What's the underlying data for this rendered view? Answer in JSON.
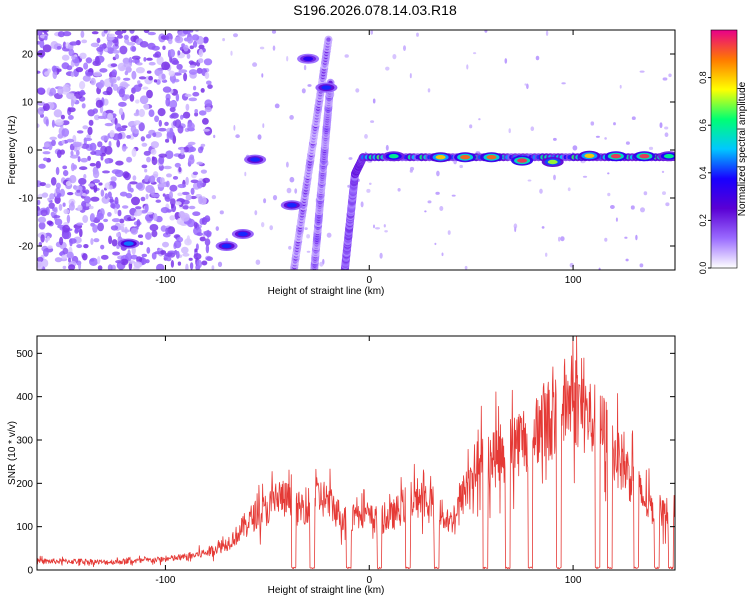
{
  "title": "S196.2026.078.14.03.R18",
  "colors": {
    "snr_line": "#e53a36",
    "colormap": [
      "#ffffff",
      "#9a6bff",
      "#5a00d4",
      "#1800ff",
      "#00c8ff",
      "#00ff73",
      "#ffff00",
      "#ff7a00",
      "#e8008a"
    ]
  },
  "chart_data": [
    {
      "type": "heatmap",
      "xlabel": "Height of straight line (km)",
      "ylabel": "Frequency (Hz)",
      "xlim": [
        -163,
        150
      ],
      "ylim": [
        -25,
        25
      ],
      "xticks": [
        {
          "value": -100,
          "label": "-100"
        },
        {
          "value": 0,
          "label": "0"
        },
        {
          "value": 100,
          "label": "100"
        }
      ],
      "yticks": [
        {
          "value": 20,
          "label": "20"
        },
        {
          "value": 10,
          "label": "10"
        },
        {
          "value": 0,
          "label": "0"
        },
        {
          "value": -10,
          "label": "-10"
        },
        {
          "value": -20,
          "label": "-20"
        }
      ],
      "colorbar": {
        "label": "Normalized spectral amplitude",
        "range": [
          0,
          1
        ],
        "ticks": [
          {
            "value": 0.0,
            "label": "0.0"
          },
          {
            "value": 0.2,
            "label": "0.2"
          },
          {
            "value": 0.4,
            "label": "0.4"
          },
          {
            "value": 0.6,
            "label": "0.6"
          },
          {
            "value": 0.8,
            "label": "0.8"
          }
        ]
      },
      "ridges": [
        {
          "from": [
            -12,
            -25
          ],
          "to": [
            -7,
            -5
          ],
          "amplitude": 0.35
        },
        {
          "from": [
            -7,
            -5
          ],
          "to": [
            -3,
            -1.5
          ],
          "amplitude": 0.5
        },
        {
          "from": [
            -3,
            -1.5
          ],
          "to": [
            150,
            -1.5
          ],
          "amplitude": 0.55
        },
        {
          "from": [
            -37,
            -25
          ],
          "to": [
            -20,
            23
          ],
          "amplitude": 0.2
        },
        {
          "from": [
            -27,
            -25
          ],
          "to": [
            -19,
            14
          ],
          "amplitude": 0.25
        }
      ],
      "hotspots": [
        {
          "x": -118,
          "y": -19.5,
          "amplitude": 0.45
        },
        {
          "x": -70,
          "y": -20,
          "amplitude": 0.4
        },
        {
          "x": -62,
          "y": -17.5,
          "amplitude": 0.4
        },
        {
          "x": -56,
          "y": -2,
          "amplitude": 0.4
        },
        {
          "x": -38,
          "y": -11.5,
          "amplitude": 0.4
        },
        {
          "x": -30,
          "y": 19,
          "amplitude": 0.35
        },
        {
          "x": -21,
          "y": 13,
          "amplitude": 0.4
        },
        {
          "x": 12,
          "y": -1.3,
          "amplitude": 0.6
        },
        {
          "x": 35,
          "y": -1.5,
          "amplitude": 0.8
        },
        {
          "x": 47,
          "y": -1.5,
          "amplitude": 0.9
        },
        {
          "x": 60,
          "y": -1.5,
          "amplitude": 0.9
        },
        {
          "x": 75,
          "y": -2.2,
          "amplitude": 0.95
        },
        {
          "x": 90,
          "y": -2.5,
          "amplitude": 0.7
        },
        {
          "x": 108,
          "y": -1.2,
          "amplitude": 0.8
        },
        {
          "x": 121,
          "y": -1.3,
          "amplitude": 0.95
        },
        {
          "x": 135,
          "y": -1.3,
          "amplitude": 0.95
        },
        {
          "x": 147,
          "y": -1.3,
          "amplitude": 0.6
        }
      ]
    },
    {
      "type": "line",
      "xlabel": "Height of straight line (km)",
      "ylabel": "SNR (10 * v/v)",
      "xlim": [
        -163,
        150
      ],
      "ylim": [
        0,
        540
      ],
      "xticks": [
        {
          "value": -100,
          "label": "-100"
        },
        {
          "value": 0,
          "label": "0"
        },
        {
          "value": 100,
          "label": "100"
        }
      ],
      "yticks": [
        {
          "value": 0,
          "label": "0"
        },
        {
          "value": 100,
          "label": "100"
        },
        {
          "value": 200,
          "label": "200"
        },
        {
          "value": 300,
          "label": "300"
        },
        {
          "value": 400,
          "label": "400"
        },
        {
          "value": 500,
          "label": "500"
        }
      ],
      "series": [
        {
          "x": [
            -163,
            -150,
            -140,
            -130,
            -120,
            -110,
            -100,
            -90,
            -80,
            -75,
            -70,
            -65,
            -60,
            -55,
            -50,
            -45,
            -40,
            -35,
            -30,
            -25,
            -20,
            -15,
            -10,
            -5,
            0,
            5,
            10,
            15,
            20,
            25,
            30,
            35,
            40,
            45,
            50,
            55,
            60,
            65,
            70,
            75,
            80,
            85,
            90,
            95,
            100,
            105,
            110,
            115,
            120,
            125,
            130,
            135,
            140,
            145,
            150
          ],
          "y": [
            20,
            20,
            20,
            18,
            20,
            22,
            25,
            30,
            40,
            50,
            60,
            80,
            110,
            130,
            140,
            170,
            160,
            140,
            150,
            170,
            160,
            130,
            110,
            150,
            120,
            115,
            120,
            140,
            160,
            170,
            160,
            130,
            110,
            160,
            220,
            250,
            260,
            270,
            290,
            300,
            320,
            340,
            350,
            380,
            400,
            370,
            340,
            320,
            280,
            240,
            200,
            160,
            140,
            130,
            140
          ]
        }
      ],
      "dropouts": [
        -37,
        -28,
        -10,
        5,
        19,
        33,
        57,
        68,
        79,
        93,
        112,
        118,
        131,
        141,
        148
      ]
    }
  ]
}
